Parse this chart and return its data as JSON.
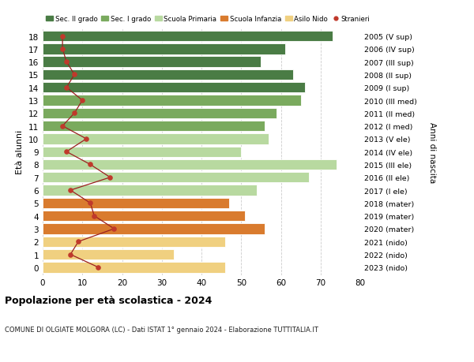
{
  "ages": [
    18,
    17,
    16,
    15,
    14,
    13,
    12,
    11,
    10,
    9,
    8,
    7,
    6,
    5,
    4,
    3,
    2,
    1,
    0
  ],
  "labels_right": [
    "2005 (V sup)",
    "2006 (IV sup)",
    "2007 (III sup)",
    "2008 (II sup)",
    "2009 (I sup)",
    "2010 (III med)",
    "2011 (II med)",
    "2012 (I med)",
    "2013 (V ele)",
    "2014 (IV ele)",
    "2015 (III ele)",
    "2016 (II ele)",
    "2017 (I ele)",
    "2018 (mater)",
    "2019 (mater)",
    "2020 (mater)",
    "2021 (nido)",
    "2022 (nido)",
    "2023 (nido)"
  ],
  "bar_values": [
    73,
    61,
    55,
    63,
    66,
    65,
    59,
    56,
    57,
    50,
    74,
    67,
    54,
    47,
    51,
    56,
    46,
    33,
    46
  ],
  "bar_colors": [
    "#4a7c45",
    "#4a7c45",
    "#4a7c45",
    "#4a7c45",
    "#4a7c45",
    "#7aaa5e",
    "#7aaa5e",
    "#7aaa5e",
    "#b8d9a0",
    "#b8d9a0",
    "#b8d9a0",
    "#b8d9a0",
    "#b8d9a0",
    "#d97b2e",
    "#d97b2e",
    "#d97b2e",
    "#f0d080",
    "#f0d080",
    "#f0d080"
  ],
  "stranieri_values": [
    5,
    5,
    6,
    8,
    6,
    10,
    8,
    5,
    11,
    6,
    12,
    17,
    7,
    12,
    13,
    18,
    9,
    7,
    14
  ],
  "legend_labels": [
    "Sec. II grado",
    "Sec. I grado",
    "Scuola Primaria",
    "Scuola Infanzia",
    "Asilo Nido",
    "Stranieri"
  ],
  "legend_colors": [
    "#4a7c45",
    "#7aaa5e",
    "#b8d9a0",
    "#d97b2e",
    "#f0d080",
    "#c0392b"
  ],
  "ylabel": "Età alunni",
  "ylabel_right": "Anni di nascita",
  "title": "Popolazione per età scolastica - 2024",
  "subtitle": "COMUNE DI OLGIATE MOLGORA (LC) - Dati ISTAT 1° gennaio 2024 - Elaborazione TUTTITALIA.IT",
  "xlim": [
    0,
    80
  ],
  "xticks": [
    0,
    10,
    20,
    30,
    40,
    50,
    60,
    70,
    80
  ],
  "background_color": "#ffffff",
  "stranieri_color": "#c0392b",
  "stranieri_line_color": "#9b2020"
}
